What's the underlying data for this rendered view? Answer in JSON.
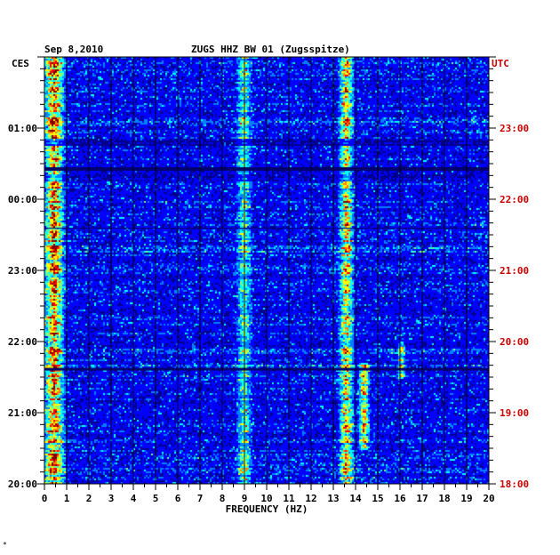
{
  "header": {
    "date": "Sep 8,2010",
    "station": "ZUGS HHZ BW 01 (Zugsspitze)",
    "left_zone": "CES",
    "right_zone": "UTC"
  },
  "footer_mark": "*",
  "chart_data": {
    "type": "heatmap",
    "title": "ZUGS HHZ BW 01 (Zugsspitze)",
    "date": "Sep 8,2010",
    "xlabel": "FREQUENCY (HZ)",
    "xlim": [
      0,
      20
    ],
    "x_ticks": [
      "0",
      "1",
      "2",
      "3",
      "4",
      "5",
      "6",
      "7",
      "8",
      "9",
      "10",
      "11",
      "12",
      "13",
      "14",
      "15",
      "16",
      "17",
      "18",
      "19",
      "20"
    ],
    "y_left_label": "CES",
    "y_left_ticks": [
      "01:00",
      "00:00",
      "23:00",
      "22:00",
      "21:00",
      "20:00"
    ],
    "y_right_label": "UTC",
    "y_right_ticks": [
      "23:00",
      "22:00",
      "21:00",
      "20:00",
      "19:00",
      "18:00"
    ],
    "time_range_utc": [
      "18:00",
      "24:00"
    ],
    "grid": true,
    "colormap": [
      "#00008b",
      "#0000ff",
      "#0080ff",
      "#00ffff",
      "#80ff80",
      "#ffff00",
      "#ff8000",
      "#ff0000",
      "#800000"
    ],
    "features": [
      {
        "name": "low-frequency energy",
        "freq_hz": [
          0,
          0.8
        ],
        "utc": [
          18.0,
          24.0
        ],
        "level": 0.7
      },
      {
        "name": "13.5 Hz line",
        "freq_hz": [
          13.3,
          13.8
        ],
        "utc": [
          18.0,
          24.0
        ],
        "level": 0.55
      },
      {
        "name": "9 Hz band",
        "freq_hz": [
          8.7,
          9.2
        ],
        "utc": [
          18.0,
          24.0
        ],
        "level": 0.35
      },
      {
        "name": "14.3 Hz marks",
        "freq_hz": [
          14.2,
          14.5
        ],
        "utc": [
          18.5,
          19.7
        ],
        "level": 0.6
      },
      {
        "name": "16 Hz mark",
        "freq_hz": [
          15.95,
          16.1
        ],
        "utc": [
          19.5,
          20.0
        ],
        "level": 0.4
      }
    ]
  }
}
